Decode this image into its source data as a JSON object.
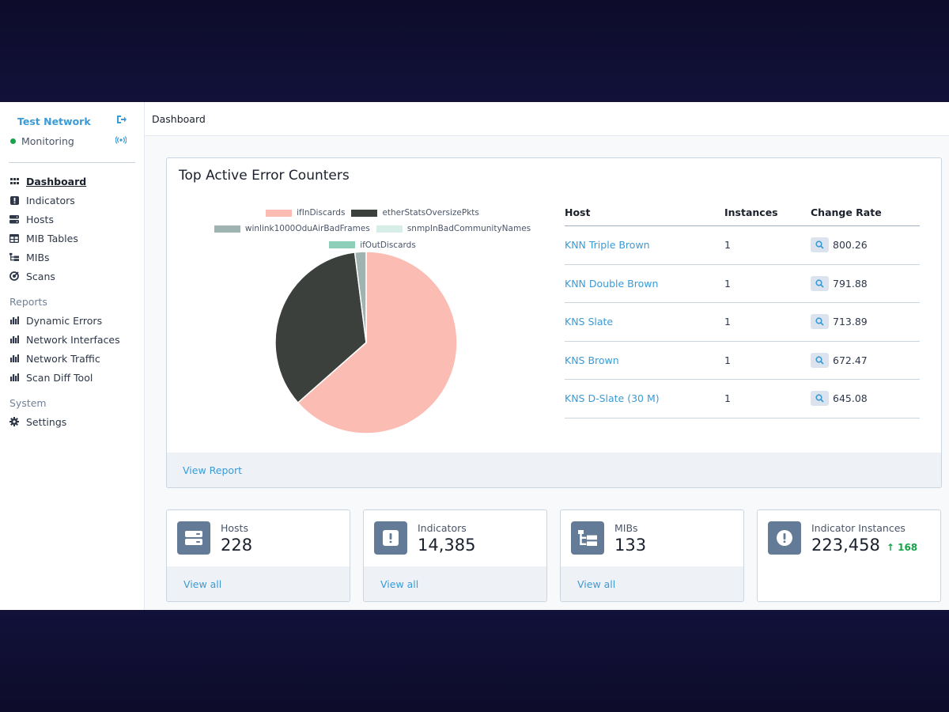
{
  "sidebar": {
    "org_name": "Test Network",
    "status": "Monitoring",
    "status_color": "#16a34a",
    "nav": [
      {
        "label": "Dashboard",
        "icon": "grid-icon",
        "active": true
      },
      {
        "label": "Indicators",
        "icon": "alert-square-icon"
      },
      {
        "label": "Hosts",
        "icon": "server-icon"
      },
      {
        "label": "MIB Tables",
        "icon": "table-icon"
      },
      {
        "label": "MIBs",
        "icon": "tree-icon"
      },
      {
        "label": "Scans",
        "icon": "radar-icon"
      }
    ],
    "reports_title": "Reports",
    "reports": [
      {
        "label": "Dynamic Errors",
        "icon": "bar-chart-icon"
      },
      {
        "label": "Network Interfaces",
        "icon": "bar-chart-icon"
      },
      {
        "label": "Network Traffic",
        "icon": "bar-chart-icon"
      },
      {
        "label": "Scan Diff Tool",
        "icon": "bar-chart-icon"
      }
    ],
    "system_title": "System",
    "system": [
      {
        "label": "Settings",
        "icon": "gear-icon"
      }
    ]
  },
  "header": {
    "breadcrumb": "Dashboard"
  },
  "panel": {
    "title": "Top Active Error Counters",
    "footer_link": "View Report",
    "table": {
      "headers": [
        "Host",
        "Instances",
        "Change Rate"
      ],
      "rows": [
        {
          "host": "KNN Triple Brown",
          "instances": "1",
          "rate": "800.26"
        },
        {
          "host": "KNN Double Brown",
          "instances": "1",
          "rate": "791.88"
        },
        {
          "host": "KNS Slate",
          "instances": "1",
          "rate": "713.89"
        },
        {
          "host": "KNS Brown",
          "instances": "1",
          "rate": "672.47"
        },
        {
          "host": "KNS D-Slate (30 M)",
          "instances": "1",
          "rate": "645.08"
        }
      ]
    }
  },
  "chart_data": {
    "type": "pie",
    "title": "",
    "legend": "top",
    "series": [
      {
        "name": "ifInDiscards",
        "value": 63.5,
        "color": "#fbbcb3"
      },
      {
        "name": "etherStatsOversizePkts",
        "value": 34.5,
        "color": "#3c403d"
      },
      {
        "name": "winlink1000OduAirBadFrames",
        "value": 2.0,
        "color": "#9fb4b0"
      },
      {
        "name": "snmpInBadCommunityNames",
        "value": 0.0,
        "color": "#d6ede8"
      },
      {
        "name": "ifOutDiscards",
        "value": 0.0,
        "color": "#8dcfb8"
      }
    ]
  },
  "cards": [
    {
      "label": "Hosts",
      "value": "228",
      "icon": "server-icon",
      "footer": "View all"
    },
    {
      "label": "Indicators",
      "value": "14,385",
      "icon": "alert-square-icon",
      "footer": "View all"
    },
    {
      "label": "MIBs",
      "value": "133",
      "icon": "tree-icon",
      "footer": "View all"
    },
    {
      "label": "Indicator Instances",
      "value": "223,458",
      "icon": "alert-circle-icon",
      "delta": "168",
      "delta_color": "#16a34a"
    }
  ]
}
